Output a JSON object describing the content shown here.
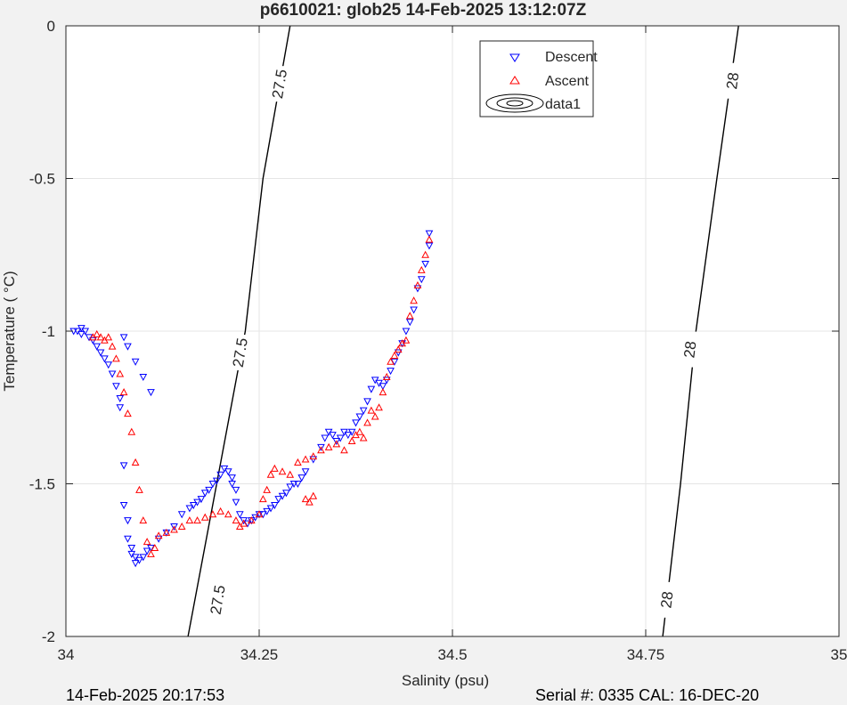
{
  "footer": {
    "timestamp": "14-Feb-2025 20:17:53",
    "serial_cal": "Serial #: 0335  CAL: 16-DEC-20"
  },
  "chart_data": {
    "type": "scatter",
    "title": "p6610021: glob25 14-Feb-2025 13:12:07Z",
    "xlabel": "Salinity (psu)",
    "ylabel": "Temperature (   °C)",
    "xlim": [
      34,
      35
    ],
    "ylim": [
      -2,
      0
    ],
    "xticks": [
      "34",
      "34.25",
      "34.5",
      "34.75",
      "35"
    ],
    "yticks": [
      "0",
      "-0.5",
      "-1",
      "-1.5",
      "-2"
    ],
    "xtick_values": [
      34,
      34.25,
      34.5,
      34.75,
      35
    ],
    "ytick_values": [
      0,
      -0.5,
      -1,
      -1.5,
      -2
    ],
    "grid": true,
    "legend_position": "top-right",
    "legend": [
      {
        "label": "Descent",
        "marker": "triangle-down",
        "color": "#0000ff"
      },
      {
        "label": "Ascent",
        "marker": "triangle-up",
        "color": "#ff0000"
      },
      {
        "label": "data1",
        "marker": "contour",
        "color": "#000000"
      }
    ],
    "contours": [
      {
        "level": "27.5",
        "points": [
          [
            34.158,
            -2.0
          ],
          [
            34.195,
            -1.5
          ],
          [
            34.232,
            -1.0
          ],
          [
            34.255,
            -0.5
          ],
          [
            34.29,
            0.0
          ]
        ],
        "labels": [
          [
            34.276,
            -0.19
          ],
          [
            34.196,
            -1.88
          ],
          [
            34.225,
            -1.07
          ]
        ]
      },
      {
        "level": "28",
        "points": [
          [
            34.772,
            -2.0
          ],
          [
            34.795,
            -1.5
          ],
          [
            34.815,
            -1.0
          ],
          [
            34.842,
            -0.5
          ],
          [
            34.87,
            0.0
          ]
        ],
        "labels": [
          [
            34.862,
            -0.18
          ],
          [
            34.807,
            -1.06
          ],
          [
            34.777,
            -1.88
          ]
        ]
      }
    ],
    "series": [
      {
        "name": "Descent",
        "color": "#0000ff",
        "marker": "triangle-down",
        "x": [
          34.01,
          34.015,
          34.02,
          34.02,
          34.025,
          34.03,
          34.035,
          34.04,
          34.045,
          34.05,
          34.055,
          34.06,
          34.065,
          34.07,
          34.07,
          34.075,
          34.075,
          34.08,
          34.08,
          34.085,
          34.085,
          34.09,
          34.09,
          34.095,
          34.1,
          34.105,
          34.11,
          34.12,
          34.13,
          34.14,
          34.15,
          34.16,
          34.165,
          34.17,
          34.175,
          34.18,
          34.185,
          34.19,
          34.195,
          34.2,
          34.205,
          34.21,
          34.215,
          34.215,
          34.22,
          34.22,
          34.225,
          34.23,
          34.235,
          34.24,
          34.245,
          34.25,
          34.255,
          34.26,
          34.265,
          34.27,
          34.275,
          34.28,
          34.285,
          34.29,
          34.295,
          34.3,
          34.305,
          34.31,
          34.32,
          34.33,
          34.335,
          34.34,
          34.345,
          34.35,
          34.355,
          34.36,
          34.365,
          34.37,
          34.375,
          34.38,
          34.385,
          34.39,
          34.395,
          34.4,
          34.405,
          34.41,
          34.415,
          34.42,
          34.425,
          34.43,
          34.435,
          34.44,
          34.445,
          34.45,
          34.455,
          34.46,
          34.465,
          34.47,
          34.47,
          34.075,
          34.08,
          34.09,
          34.1,
          34.11
        ],
        "y": [
          -1.0,
          -1.0,
          -0.99,
          -1.01,
          -1.0,
          -1.02,
          -1.03,
          -1.05,
          -1.07,
          -1.09,
          -1.11,
          -1.14,
          -1.18,
          -1.22,
          -1.25,
          -1.44,
          -1.57,
          -1.62,
          -1.68,
          -1.71,
          -1.73,
          -1.74,
          -1.76,
          -1.75,
          -1.74,
          -1.72,
          -1.71,
          -1.68,
          -1.66,
          -1.64,
          -1.6,
          -1.58,
          -1.57,
          -1.56,
          -1.55,
          -1.53,
          -1.52,
          -1.5,
          -1.49,
          -1.47,
          -1.45,
          -1.46,
          -1.48,
          -1.5,
          -1.52,
          -1.56,
          -1.6,
          -1.62,
          -1.63,
          -1.62,
          -1.61,
          -1.6,
          -1.6,
          -1.59,
          -1.58,
          -1.57,
          -1.55,
          -1.54,
          -1.53,
          -1.51,
          -1.5,
          -1.5,
          -1.48,
          -1.46,
          -1.42,
          -1.38,
          -1.35,
          -1.33,
          -1.34,
          -1.36,
          -1.35,
          -1.33,
          -1.34,
          -1.33,
          -1.3,
          -1.28,
          -1.26,
          -1.23,
          -1.19,
          -1.16,
          -1.17,
          -1.18,
          -1.16,
          -1.13,
          -1.1,
          -1.07,
          -1.04,
          -1.0,
          -0.97,
          -0.93,
          -0.86,
          -0.83,
          -0.78,
          -0.72,
          -0.68,
          -1.02,
          -1.05,
          -1.1,
          -1.15,
          -1.2
        ]
      },
      {
        "name": "Ascent",
        "color": "#ff0000",
        "marker": "triangle-up",
        "x": [
          34.035,
          34.04,
          34.045,
          34.05,
          34.055,
          34.06,
          34.065,
          34.07,
          34.075,
          34.08,
          34.085,
          34.09,
          34.095,
          34.1,
          34.105,
          34.11,
          34.115,
          34.12,
          34.13,
          34.14,
          34.15,
          34.16,
          34.17,
          34.18,
          34.19,
          34.2,
          34.21,
          34.22,
          34.225,
          34.23,
          34.24,
          34.25,
          34.255,
          34.26,
          34.265,
          34.27,
          34.28,
          34.29,
          34.3,
          34.31,
          34.32,
          34.33,
          34.34,
          34.35,
          34.36,
          34.37,
          34.375,
          34.38,
          34.385,
          34.39,
          34.395,
          34.4,
          34.405,
          34.41,
          34.415,
          34.42,
          34.425,
          34.43,
          34.435,
          34.44,
          34.445,
          34.45,
          34.455,
          34.46,
          34.465,
          34.47,
          34.31,
          34.315,
          34.32
        ],
        "y": [
          -1.02,
          -1.01,
          -1.02,
          -1.03,
          -1.02,
          -1.05,
          -1.09,
          -1.14,
          -1.2,
          -1.27,
          -1.33,
          -1.43,
          -1.52,
          -1.62,
          -1.69,
          -1.73,
          -1.71,
          -1.67,
          -1.66,
          -1.65,
          -1.64,
          -1.62,
          -1.62,
          -1.61,
          -1.6,
          -1.59,
          -1.6,
          -1.62,
          -1.64,
          -1.63,
          -1.62,
          -1.6,
          -1.55,
          -1.52,
          -1.47,
          -1.45,
          -1.46,
          -1.47,
          -1.43,
          -1.42,
          -1.41,
          -1.39,
          -1.38,
          -1.37,
          -1.39,
          -1.36,
          -1.34,
          -1.33,
          -1.35,
          -1.3,
          -1.26,
          -1.28,
          -1.25,
          -1.2,
          -1.15,
          -1.1,
          -1.08,
          -1.06,
          -1.04,
          -1.03,
          -0.95,
          -0.9,
          -0.85,
          -0.8,
          -0.75,
          -0.7,
          -1.55,
          -1.56,
          -1.54
        ]
      }
    ]
  }
}
